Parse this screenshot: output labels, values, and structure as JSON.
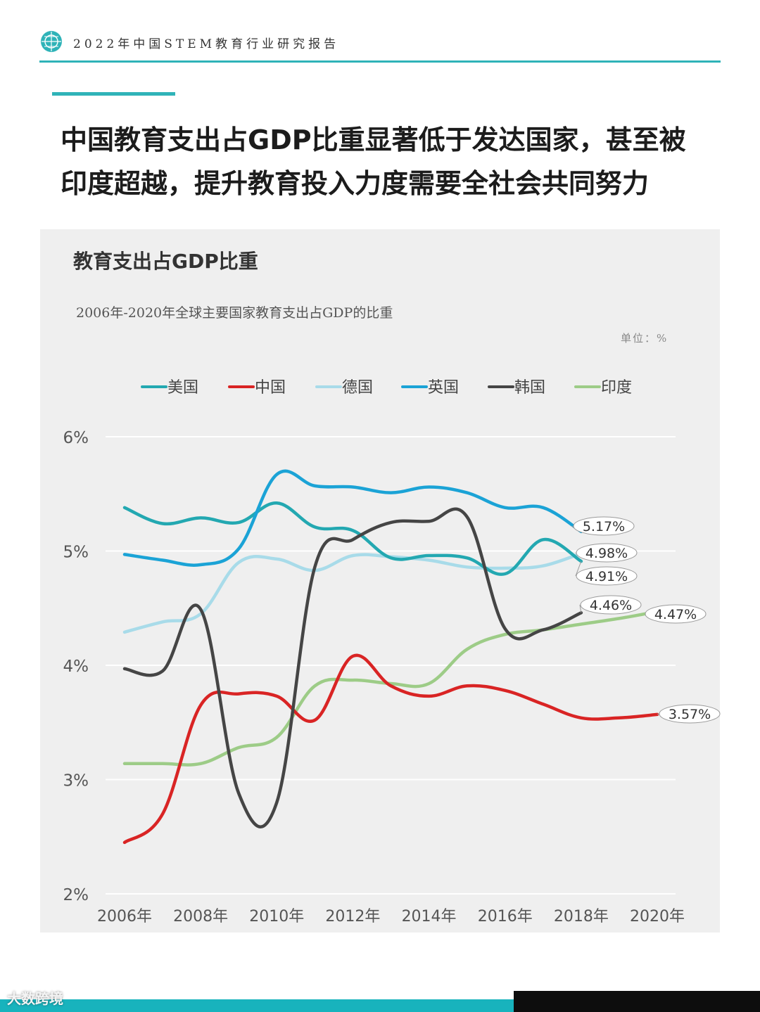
{
  "header": {
    "report_title": "2022年中国STEM教育行业研究报告"
  },
  "headline": {
    "line1": "中国教育支出占GDP比重显著低于发达国家，甚至被",
    "line2": "印度超越，提升教育投入力度需要全社会共同努力"
  },
  "chart_data": {
    "type": "line",
    "title": "教育支出占GDP比重",
    "subtitle": "2006年-2020年全球主要国家教育支出占GDP的比重",
    "unit_label": "单位：%",
    "ylim": [
      2,
      6
    ],
    "y_ticks": [
      "2%",
      "3%",
      "4%",
      "5%",
      "6%"
    ],
    "y_tick_values": [
      2,
      3,
      4,
      5,
      6
    ],
    "x": [
      2006,
      2007,
      2008,
      2009,
      2010,
      2011,
      2012,
      2013,
      2014,
      2015,
      2016,
      2017,
      2018,
      2019,
      2020
    ],
    "x_ticks": [
      "2006年",
      "2008年",
      "2010年",
      "2012年",
      "2014年",
      "2016年",
      "2018年",
      "2020年"
    ],
    "x_tick_values": [
      2006,
      2008,
      2010,
      2012,
      2014,
      2016,
      2018,
      2020
    ],
    "grid": true,
    "legend_position": "top",
    "series": [
      {
        "name": "美国",
        "color": "#23a8b1",
        "values": [
          5.38,
          5.24,
          5.29,
          5.25,
          5.42,
          5.21,
          5.18,
          4.94,
          4.96,
          4.94,
          4.8,
          5.1,
          4.91,
          null,
          null
        ],
        "end_label": "4.91%"
      },
      {
        "name": "中国",
        "color": "#d92424",
        "values": [
          2.45,
          2.7,
          3.65,
          3.75,
          3.73,
          3.52,
          4.08,
          3.82,
          3.73,
          3.82,
          3.78,
          3.66,
          3.54,
          3.54,
          3.57
        ],
        "end_label": "3.57%"
      },
      {
        "name": "德国",
        "color": "#a8dbe9",
        "values": [
          4.29,
          4.38,
          4.45,
          4.9,
          4.93,
          4.83,
          4.96,
          4.95,
          4.92,
          4.86,
          4.85,
          4.87,
          4.98,
          null,
          null
        ],
        "end_label": "4.98%"
      },
      {
        "name": "英国",
        "color": "#1ba3d6",
        "values": [
          4.97,
          4.92,
          4.88,
          5.02,
          5.67,
          5.57,
          5.56,
          5.51,
          5.56,
          5.51,
          5.38,
          5.38,
          5.17,
          null,
          null
        ],
        "end_label": "5.17%"
      },
      {
        "name": "韩国",
        "color": "#454545",
        "values": [
          3.97,
          3.95,
          4.49,
          2.88,
          2.8,
          4.86,
          5.1,
          5.25,
          5.26,
          5.3,
          4.32,
          4.31,
          4.46,
          null,
          null
        ],
        "end_label": "4.46%"
      },
      {
        "name": "印度",
        "color": "#9dcc87",
        "values": [
          3.14,
          3.14,
          3.14,
          3.28,
          3.37,
          3.82,
          3.87,
          3.84,
          3.84,
          4.14,
          4.27,
          4.31,
          4.36,
          4.41,
          4.47
        ],
        "end_label": "4.47%"
      }
    ]
  },
  "footer": {
    "watermark": "大数跨境"
  }
}
